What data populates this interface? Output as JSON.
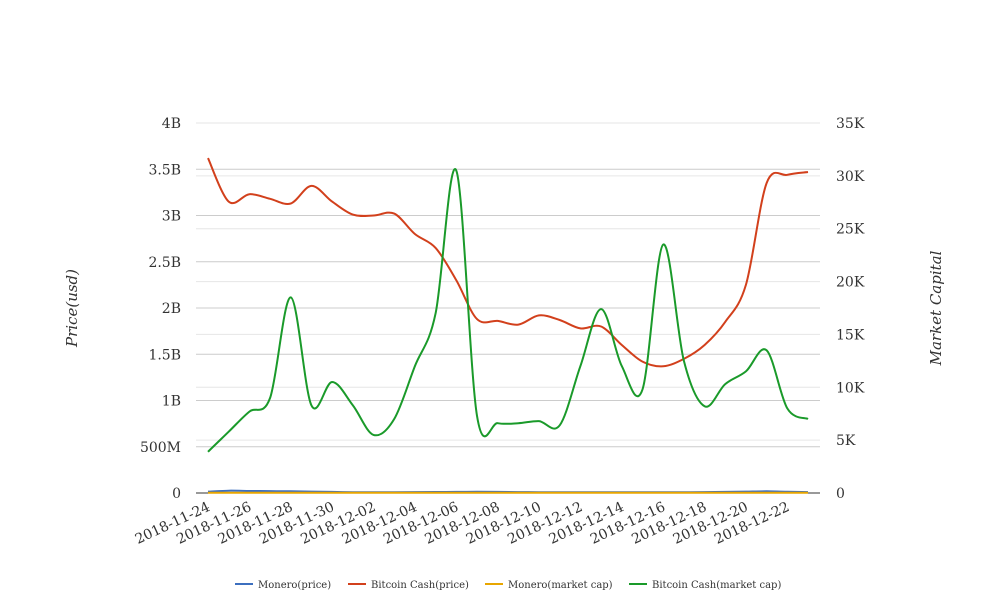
{
  "chart_data": {
    "type": "line",
    "x": [
      "2018-11-24",
      "2018-11-25",
      "2018-11-26",
      "2018-11-27",
      "2018-11-28",
      "2018-11-29",
      "2018-11-30",
      "2018-12-01",
      "2018-12-02",
      "2018-12-03",
      "2018-12-04",
      "2018-12-05",
      "2018-12-06",
      "2018-12-07",
      "2018-12-08",
      "2018-12-09",
      "2018-12-10",
      "2018-12-11",
      "2018-12-12",
      "2018-12-13",
      "2018-12-14",
      "2018-12-15",
      "2018-12-16",
      "2018-12-17",
      "2018-12-18",
      "2018-12-19",
      "2018-12-20",
      "2018-12-21",
      "2018-12-22",
      "2018-12-23"
    ],
    "x_tick_labels": [
      "2018-11-24",
      "2018-11-26",
      "2018-11-28",
      "2018-11-30",
      "2018-12-02",
      "2018-12-04",
      "2018-12-06",
      "2018-12-08",
      "2018-12-10",
      "2018-12-12",
      "2018-12-14",
      "2018-12-16",
      "2018-12-18",
      "2018-12-20",
      "2018-12-22"
    ],
    "y_left": {
      "label": "Price(usd)",
      "min": 0,
      "max": 4000000000,
      "ticks": [
        0,
        500000000,
        1000000000,
        1500000000,
        2000000000,
        2500000000,
        3000000000,
        3500000000,
        4000000000
      ],
      "tick_labels": [
        "0",
        "500M",
        "1B",
        "1.5B",
        "2B",
        "2.5B",
        "3B",
        "3.5B",
        "4B"
      ]
    },
    "y_right": {
      "label": "Market Capital",
      "min": 0,
      "max": 35000,
      "ticks": [
        0,
        5000,
        10000,
        15000,
        20000,
        25000,
        30000,
        35000
      ],
      "tick_labels": [
        "0",
        "5K",
        "10K",
        "15K",
        "20K",
        "25K",
        "30K",
        "35K"
      ]
    },
    "legend_position": "bottom",
    "grid": true,
    "series": [
      {
        "name": "Monero(price)",
        "axis": "left",
        "color": "#3c6fbf",
        "values": [
          15000000,
          25000000,
          22000000,
          20000000,
          18000000,
          15000000,
          12000000,
          8000000,
          8000000,
          9000000,
          10000000,
          11000000,
          12000000,
          13000000,
          12000000,
          10000000,
          9000000,
          9000000,
          8000000,
          8000000,
          8000000,
          8000000,
          8000000,
          8000000,
          10000000,
          12000000,
          15000000,
          18000000,
          13000000,
          10000000
        ]
      },
      {
        "name": "Bitcoin Cash(price)",
        "axis": "left",
        "color": "#d2401c",
        "values": [
          3620000000,
          3150000000,
          3230000000,
          3180000000,
          3130000000,
          3320000000,
          3150000000,
          3010000000,
          3000000000,
          3020000000,
          2800000000,
          2650000000,
          2300000000,
          1880000000,
          1860000000,
          1820000000,
          1920000000,
          1870000000,
          1780000000,
          1800000000,
          1600000000,
          1420000000,
          1370000000,
          1450000000,
          1600000000,
          1850000000,
          2250000000,
          3350000000,
          3440000000,
          3470000000
        ]
      },
      {
        "name": "Monero(market cap)",
        "axis": "right",
        "color": "#e8a600",
        "values": [
          20,
          20,
          20,
          20,
          20,
          20,
          20,
          20,
          20,
          20,
          20,
          20,
          20,
          20,
          20,
          20,
          20,
          20,
          20,
          20,
          20,
          20,
          20,
          20,
          20,
          20,
          20,
          20,
          20,
          20
        ]
      },
      {
        "name": "Bitcoin Cash(market cap)",
        "axis": "right",
        "color": "#1a9a2a",
        "values": [
          3900,
          5800,
          7700,
          9000,
          18500,
          8300,
          10500,
          8300,
          5500,
          7000,
          12000,
          17000,
          30500,
          7300,
          6600,
          6600,
          6800,
          6400,
          12000,
          17400,
          12000,
          9800,
          23500,
          12500,
          8200,
          10300,
          11500,
          13500,
          8000,
          7000
        ]
      }
    ]
  }
}
